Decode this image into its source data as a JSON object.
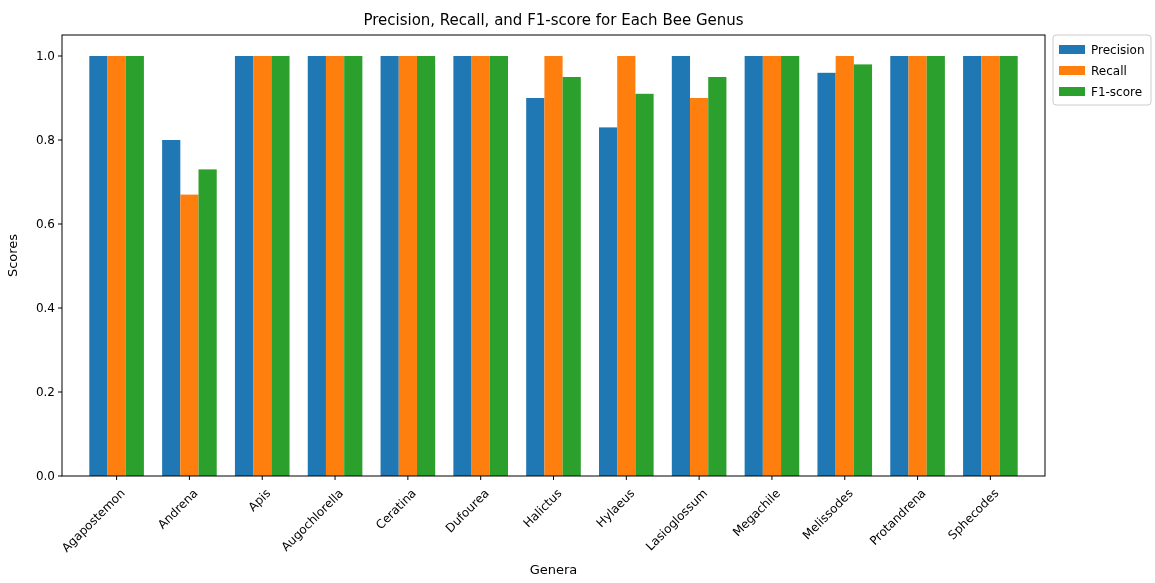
{
  "chart_data": {
    "type": "bar",
    "title": "Precision, Recall, and F1-score for Each Bee Genus",
    "xlabel": "Genera",
    "ylabel": "Scores",
    "categories": [
      "Agapostemon",
      "Andrena",
      "Apis",
      "Augochlorella",
      "Ceratina",
      "Dufourea",
      "Halictus",
      "Hylaeus",
      "Lasioglossum",
      "Megachile",
      "Melissodes",
      "Protandrena",
      "Sphecodes"
    ],
    "series": [
      {
        "name": "Precision",
        "color": "#1f77b4",
        "values": [
          1.0,
          0.8,
          1.0,
          1.0,
          1.0,
          1.0,
          0.9,
          0.83,
          1.0,
          1.0,
          0.96,
          1.0,
          1.0
        ]
      },
      {
        "name": "Recall",
        "color": "#ff7f0e",
        "values": [
          1.0,
          0.67,
          1.0,
          1.0,
          1.0,
          1.0,
          1.0,
          1.0,
          0.9,
          1.0,
          1.0,
          1.0,
          1.0
        ]
      },
      {
        "name": "F1-score",
        "color": "#2ca02c",
        "values": [
          1.0,
          0.73,
          1.0,
          1.0,
          1.0,
          1.0,
          0.95,
          0.91,
          0.95,
          1.0,
          0.98,
          1.0,
          1.0
        ]
      }
    ],
    "ylim": [
      0,
      1.05
    ],
    "yticks": [
      {
        "value": 0,
        "label": "0.0"
      },
      {
        "value": 0.2,
        "label": "0.2"
      },
      {
        "value": 0.4,
        "label": "0.4"
      },
      {
        "value": 0.6,
        "label": "0.6"
      },
      {
        "value": 0.8,
        "label": "0.8"
      },
      {
        "value": 1,
        "label": "1.0"
      }
    ],
    "legend": "top right"
  }
}
